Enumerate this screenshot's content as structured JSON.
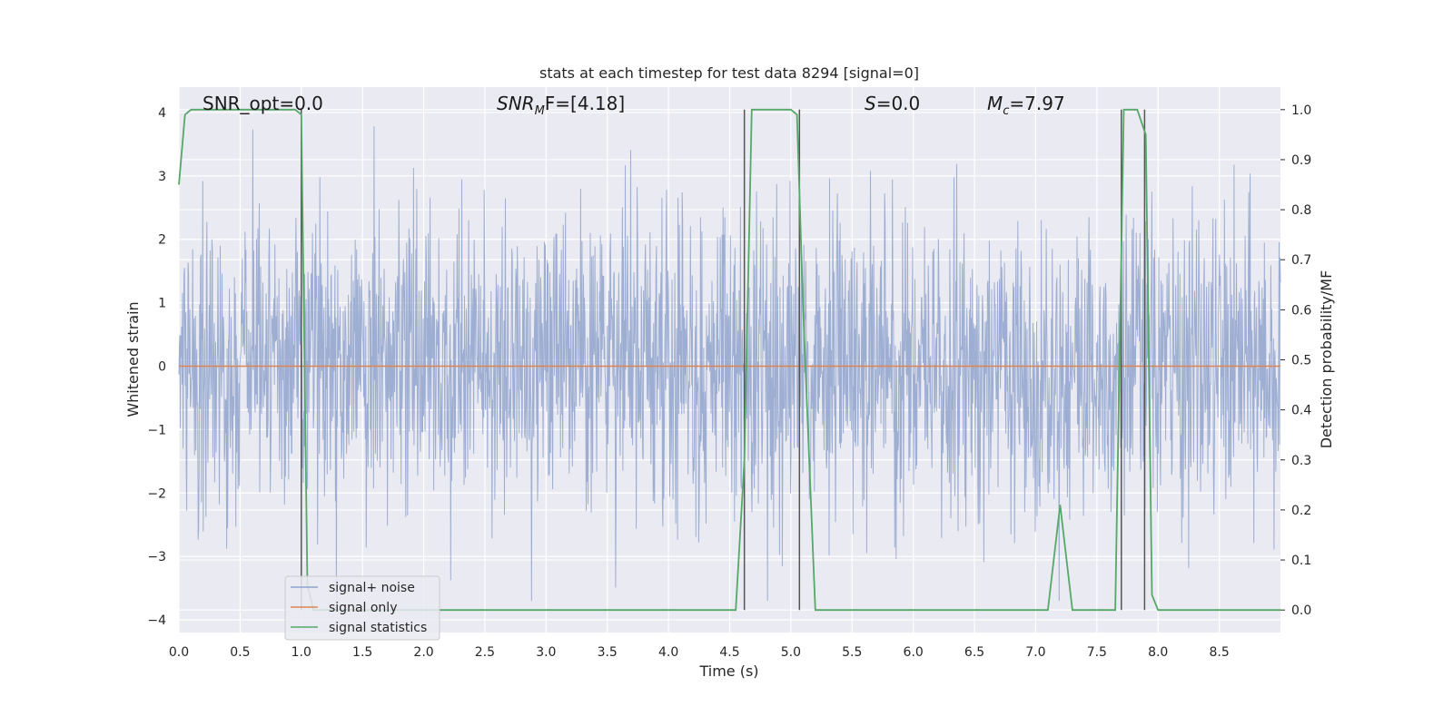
{
  "chart_data": {
    "type": "line",
    "title": "stats at each timestep for test data 8294 [signal=0]",
    "xlabel": "Time (s)",
    "ylabel": "Whitened strain",
    "y2label": "Detection probability/MF",
    "xlim": [
      0,
      9.0
    ],
    "ylim": [
      -4.2,
      4.4
    ],
    "y2lim": [
      -0.045,
      1.045
    ],
    "x_ticks": [
      "0.0",
      "0.5",
      "1.0",
      "1.5",
      "2.0",
      "2.5",
      "3.0",
      "3.5",
      "4.0",
      "4.5",
      "5.0",
      "5.5",
      "6.0",
      "6.5",
      "7.0",
      "7.5",
      "8.0",
      "8.5"
    ],
    "y_ticks": [
      "4",
      "3",
      "2",
      "1",
      "0",
      "−1",
      "−2",
      "−3",
      "−4"
    ],
    "y2_ticks": [
      "1.0",
      "0.9",
      "0.8",
      "0.7",
      "0.6",
      "0.5",
      "0.4",
      "0.3",
      "0.2",
      "0.1",
      "0.0"
    ],
    "grid": true,
    "legend_position": "lower-left",
    "annotations": {
      "snr_opt": "SNR_opt=0.0",
      "snr_mf_italic": "SNR",
      "snr_mf_sub": "M",
      "snr_mf_rest": "F=[4.18]",
      "s_italic": "S",
      "s_rest": "=0.0",
      "mc_italic": "M",
      "mc_sub": "c",
      "mc_rest": "=7.97"
    },
    "series": [
      {
        "name": "signal+ noise",
        "color": "#8fa3cc",
        "description_values": {
          "x_range": [
            0,
            9.0
          ],
          "typical_amplitude": 1.5,
          "peak_max": 4.0,
          "peak_min": -3.7
        }
      },
      {
        "name": "signal only",
        "color": "#dd8452",
        "values": {
          "x": [
            0,
            9.0
          ],
          "y": [
            0,
            0
          ]
        }
      },
      {
        "name": "signal statistics",
        "color": "#55a868",
        "axis": "right",
        "x": [
          0.0,
          0.05,
          0.1,
          0.2,
          0.5,
          0.9,
          0.95,
          1.0,
          1.05,
          1.1,
          1.5,
          2.0,
          3.0,
          4.0,
          4.5,
          4.55,
          4.62,
          4.68,
          4.75,
          4.9,
          5.0,
          5.05,
          5.1,
          5.2,
          5.3,
          6.0,
          7.0,
          7.1,
          7.2,
          7.3,
          7.5,
          7.65,
          7.72,
          7.78,
          7.83,
          7.9,
          7.95,
          8.0,
          8.5,
          9.0
        ],
        "y": [
          0.85,
          0.99,
          1.0,
          1.0,
          1.0,
          1.0,
          1.0,
          0.99,
          0.05,
          0.0,
          0.0,
          0.0,
          0.0,
          0.0,
          0.0,
          0.0,
          0.3,
          1.0,
          1.0,
          1.0,
          1.0,
          0.99,
          0.6,
          0.0,
          0.0,
          0.0,
          0.0,
          0.0,
          0.21,
          0.0,
          0.0,
          0.0,
          1.0,
          1.0,
          1.0,
          0.95,
          0.03,
          0.0,
          0.0,
          0.0
        ]
      }
    ],
    "vertical_markers": [
      1.0,
      4.62,
      5.07,
      7.7,
      7.89
    ]
  }
}
